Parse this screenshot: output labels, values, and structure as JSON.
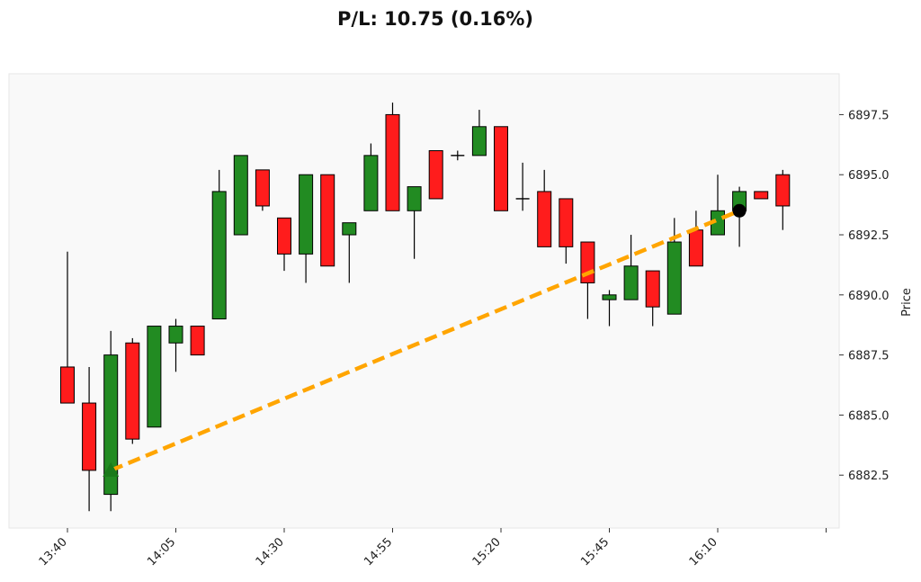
{
  "chart_data": {
    "type": "candlestick",
    "title": "P/L: 10.75 (0.16%)",
    "ylabel": "Price",
    "xlabel": "",
    "ylim": [
      6880.3,
      6899.2
    ],
    "y_ticks": [
      6882.5,
      6885.0,
      6887.5,
      6890.0,
      6892.5,
      6895.0,
      6897.5
    ],
    "y_tick_labels": [
      "6882.5",
      "6885.0",
      "6887.5",
      "6890.0",
      "6892.5",
      "6895.0",
      "6897.5"
    ],
    "x_tick_labels": [
      "13:40",
      "14:05",
      "14:30",
      "14:55",
      "15:20",
      "15:45",
      "16:10",
      ""
    ],
    "x_ticks_index": [
      0,
      5,
      10,
      15,
      20,
      25,
      30,
      35
    ],
    "bar_minutes": 5,
    "grid": false,
    "colors": {
      "up": "#228b22",
      "down": "#ff1c1c",
      "trade_line": "#ffa500",
      "entry": "#1a7a1a",
      "exit": "#000000",
      "plot_bg": "#f9f9f9"
    },
    "candles": [
      {
        "time": "13:40",
        "open": 6887.0,
        "high": 6891.8,
        "low": 6885.5,
        "close": 6885.5
      },
      {
        "time": "13:45",
        "open": 6885.5,
        "high": 6887.0,
        "low": 6881.0,
        "close": 6882.7
      },
      {
        "time": "13:50",
        "open": 6881.7,
        "high": 6888.5,
        "low": 6881.0,
        "close": 6887.5
      },
      {
        "time": "13:55",
        "open": 6888.0,
        "high": 6888.2,
        "low": 6883.8,
        "close": 6884.0
      },
      {
        "time": "14:00",
        "open": 6884.5,
        "high": 6888.7,
        "low": 6884.5,
        "close": 6888.7
      },
      {
        "time": "14:05",
        "open": 6888.0,
        "high": 6889.0,
        "low": 6886.8,
        "close": 6888.7
      },
      {
        "time": "14:10",
        "open": 6888.7,
        "high": 6888.7,
        "low": 6887.5,
        "close": 6887.5
      },
      {
        "time": "14:15",
        "open": 6889.0,
        "high": 6895.2,
        "low": 6889.0,
        "close": 6894.3
      },
      {
        "time": "14:20",
        "open": 6892.5,
        "high": 6895.8,
        "low": 6892.5,
        "close": 6895.8
      },
      {
        "time": "14:25",
        "open": 6895.2,
        "high": 6895.2,
        "low": 6893.5,
        "close": 6893.7
      },
      {
        "time": "14:30",
        "open": 6893.2,
        "high": 6893.2,
        "low": 6891.0,
        "close": 6891.7
      },
      {
        "time": "14:35",
        "open": 6891.7,
        "high": 6895.0,
        "low": 6890.5,
        "close": 6895.0
      },
      {
        "time": "14:40",
        "open": 6895.0,
        "high": 6895.0,
        "low": 6891.2,
        "close": 6891.2
      },
      {
        "time": "14:45",
        "open": 6892.5,
        "high": 6893.0,
        "low": 6890.5,
        "close": 6893.0
      },
      {
        "time": "14:50",
        "open": 6893.5,
        "high": 6896.3,
        "low": 6893.5,
        "close": 6895.8
      },
      {
        "time": "14:55",
        "open": 6897.5,
        "high": 6898.0,
        "low": 6893.5,
        "close": 6893.5
      },
      {
        "time": "15:00",
        "open": 6893.5,
        "high": 6894.5,
        "low": 6891.5,
        "close": 6894.5
      },
      {
        "time": "15:05",
        "open": 6896.0,
        "high": 6896.0,
        "low": 6894.0,
        "close": 6894.0
      },
      {
        "time": "15:10",
        "open": 6895.8,
        "high": 6896.0,
        "low": 6895.6,
        "close": 6895.8
      },
      {
        "time": "15:15",
        "open": 6895.8,
        "high": 6897.7,
        "low": 6895.8,
        "close": 6897.0
      },
      {
        "time": "15:20",
        "open": 6897.0,
        "high": 6897.0,
        "low": 6893.5,
        "close": 6893.5
      },
      {
        "time": "15:25",
        "open": 6894.0,
        "high": 6895.5,
        "low": 6893.5,
        "close": 6894.0
      },
      {
        "time": "15:30",
        "open": 6894.3,
        "high": 6895.2,
        "low": 6892.0,
        "close": 6892.0
      },
      {
        "time": "15:35",
        "open": 6894.0,
        "high": 6894.0,
        "low": 6891.3,
        "close": 6892.0
      },
      {
        "time": "15:40",
        "open": 6892.2,
        "high": 6892.2,
        "low": 6889.0,
        "close": 6890.5
      },
      {
        "time": "15:45",
        "open": 6889.8,
        "high": 6890.2,
        "low": 6888.7,
        "close": 6890.0
      },
      {
        "time": "15:50",
        "open": 6889.8,
        "high": 6892.5,
        "low": 6889.8,
        "close": 6891.2
      },
      {
        "time": "15:55",
        "open": 6891.0,
        "high": 6891.0,
        "low": 6888.7,
        "close": 6889.5
      },
      {
        "time": "16:00",
        "open": 6889.2,
        "high": 6893.2,
        "low": 6889.2,
        "close": 6892.2
      },
      {
        "time": "16:05",
        "open": 6892.7,
        "high": 6893.5,
        "low": 6891.2,
        "close": 6891.2
      },
      {
        "time": "16:10",
        "open": 6892.5,
        "high": 6895.0,
        "low": 6892.5,
        "close": 6893.5
      },
      {
        "time": "16:15",
        "open": 6893.5,
        "high": 6894.5,
        "low": 6892.0,
        "close": 6894.3
      },
      {
        "time": "16:20",
        "open": 6894.3,
        "high": 6894.3,
        "low": 6894.0,
        "close": 6894.0
      },
      {
        "time": "16:25",
        "open": 6895.0,
        "high": 6895.2,
        "low": 6892.7,
        "close": 6893.7
      }
    ],
    "trade": {
      "entry": {
        "index": 2,
        "price": 6882.7,
        "marker": "triangle-up"
      },
      "exit": {
        "index": 31,
        "price": 6893.5,
        "marker": "circle"
      },
      "line_style": "dashed"
    }
  }
}
